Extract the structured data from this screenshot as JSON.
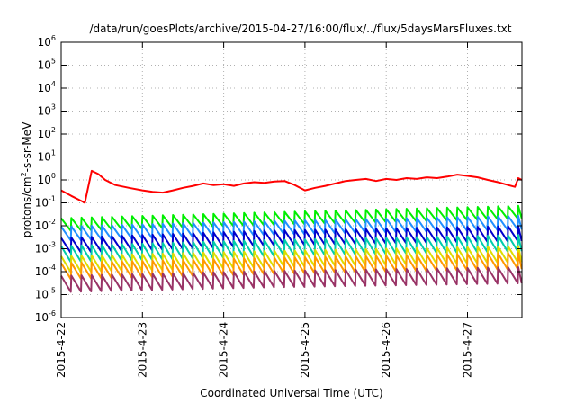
{
  "chart_data": {
    "type": "line",
    "title": "/data/run/goesPlots/archive/2015-04-27/16:00/flux/../flux/5daysMarsFluxes.txt",
    "xlabel": "Coordinated Universal Time (UTC)",
    "ylabel_main": "protons/cm",
    "ylabel_sup": "2",
    "ylabel_rest": "-s-sr-MeV",
    "yscale": "log",
    "ylim": [
      1e-06,
      1000000.0
    ],
    "y_ticks": [
      {
        "base": "10",
        "exp": "-6",
        "value": -6
      },
      {
        "base": "10",
        "exp": "-5",
        "value": -5
      },
      {
        "base": "10",
        "exp": "-4",
        "value": -4
      },
      {
        "base": "10",
        "exp": "-3",
        "value": -3
      },
      {
        "base": "10",
        "exp": "-2",
        "value": -2
      },
      {
        "base": "10",
        "exp": "-1",
        "value": -1
      },
      {
        "base": "10",
        "exp": "0",
        "value": 0
      },
      {
        "base": "10",
        "exp": "1",
        "value": 1
      },
      {
        "base": "10",
        "exp": "2",
        "value": 2
      },
      {
        "base": "10",
        "exp": "3",
        "value": 3
      },
      {
        "base": "10",
        "exp": "4",
        "value": 4
      },
      {
        "base": "10",
        "exp": "5",
        "value": 5
      },
      {
        "base": "10",
        "exp": "6",
        "value": 6
      }
    ],
    "xlim_days": [
      "2015-04-22 00:00",
      "2015-04-27 16:00"
    ],
    "x_ticks": [
      {
        "label": "2015-4-22",
        "date": "2015-04-22"
      },
      {
        "label": "2015-4-23",
        "date": "2015-04-23"
      },
      {
        "label": "2015-4-24",
        "date": "2015-04-24"
      },
      {
        "label": "2015-4-25",
        "date": "2015-04-25"
      },
      {
        "label": "2015-4-26",
        "date": "2015-04-26"
      },
      {
        "label": "2015-4-27",
        "date": "2015-04-27"
      }
    ],
    "grid": true,
    "series": [
      {
        "color": "#ff0000",
        "description": "highest channel, smooth with spike on 2015-04-22",
        "points": [
          [
            "2015-04-22 00:00",
            0.35
          ],
          [
            "2015-04-22 03:00",
            0.2
          ],
          [
            "2015-04-22 06:00",
            0.12
          ],
          [
            "2015-04-22 07:00",
            0.1
          ],
          [
            "2015-04-22 08:00",
            0.5
          ],
          [
            "2015-04-22 09:00",
            2.5
          ],
          [
            "2015-04-22 11:00",
            1.8
          ],
          [
            "2015-04-22 13:00",
            1.0
          ],
          [
            "2015-04-22 16:00",
            0.6
          ],
          [
            "2015-04-22 20:00",
            0.45
          ],
          [
            "2015-04-23 00:00",
            0.35
          ],
          [
            "2015-04-23 03:00",
            0.3
          ],
          [
            "2015-04-23 06:00",
            0.28
          ],
          [
            "2015-04-23 09:00",
            0.35
          ],
          [
            "2015-04-23 12:00",
            0.45
          ],
          [
            "2015-04-23 15:00",
            0.55
          ],
          [
            "2015-04-23 18:00",
            0.7
          ],
          [
            "2015-04-23 21:00",
            0.6
          ],
          [
            "2015-04-24 00:00",
            0.65
          ],
          [
            "2015-04-24 03:00",
            0.55
          ],
          [
            "2015-04-24 06:00",
            0.7
          ],
          [
            "2015-04-24 09:00",
            0.8
          ],
          [
            "2015-04-24 12:00",
            0.75
          ],
          [
            "2015-04-24 15:00",
            0.85
          ],
          [
            "2015-04-24 18:00",
            0.9
          ],
          [
            "2015-04-24 21:00",
            0.6
          ],
          [
            "2015-04-25 00:00",
            0.35
          ],
          [
            "2015-04-25 03:00",
            0.45
          ],
          [
            "2015-04-25 06:00",
            0.55
          ],
          [
            "2015-04-25 09:00",
            0.7
          ],
          [
            "2015-04-25 12:00",
            0.9
          ],
          [
            "2015-04-25 15:00",
            1.0
          ],
          [
            "2015-04-25 18:00",
            1.1
          ],
          [
            "2015-04-25 21:00",
            0.9
          ],
          [
            "2015-04-26 00:00",
            1.1
          ],
          [
            "2015-04-26 03:00",
            1.0
          ],
          [
            "2015-04-26 06:00",
            1.2
          ],
          [
            "2015-04-26 09:00",
            1.1
          ],
          [
            "2015-04-26 12:00",
            1.3
          ],
          [
            "2015-04-26 15:00",
            1.2
          ],
          [
            "2015-04-26 18:00",
            1.4
          ],
          [
            "2015-04-26 21:00",
            1.7
          ],
          [
            "2015-04-27 00:00",
            1.5
          ],
          [
            "2015-04-27 03:00",
            1.3
          ],
          [
            "2015-04-27 06:00",
            1.0
          ],
          [
            "2015-04-27 09:00",
            0.8
          ],
          [
            "2015-04-27 12:00",
            0.6
          ],
          [
            "2015-04-27 14:00",
            0.5
          ],
          [
            "2015-04-27 15:00",
            1.2
          ],
          [
            "2015-04-27 16:00",
            1.0
          ]
        ]
      },
      {
        "color": "#00ee00",
        "base": 0.012,
        "amplitude_decades": 0.55,
        "trend": [
          [
            0,
            0.01
          ],
          [
            2.5,
            0.018
          ],
          [
            5.67,
            0.035
          ]
        ]
      },
      {
        "color": "#1f8fff",
        "base": 0.005,
        "amplitude_decades": 0.6,
        "trend": [
          [
            0,
            0.004
          ],
          [
            2.5,
            0.007
          ],
          [
            5.67,
            0.012
          ]
        ]
      },
      {
        "color": "#0000cc",
        "base": 0.0015,
        "amplitude_decades": 0.65,
        "trend": [
          [
            0,
            0.0012
          ],
          [
            2.5,
            0.0025
          ],
          [
            5.67,
            0.004
          ]
        ]
      },
      {
        "color": "#00ccaa",
        "base": 0.0007,
        "amplitude_decades": 0.7,
        "trend": [
          [
            0,
            0.0005
          ],
          [
            2.5,
            0.0009
          ],
          [
            5.67,
            0.0015
          ]
        ]
      },
      {
        "color": "#dddd00",
        "base": 0.00025,
        "amplitude_decades": 0.7,
        "trend": [
          [
            0,
            0.00018
          ],
          [
            2.5,
            0.0003
          ],
          [
            5.67,
            0.0005
          ]
        ]
      },
      {
        "color": "#ff9900",
        "base": 0.00012,
        "amplitude_decades": 0.7,
        "trend": [
          [
            0,
            9e-05
          ],
          [
            2.5,
            0.00015
          ],
          [
            5.67,
            0.00025
          ]
        ]
      },
      {
        "color": "#993366",
        "base": 3e-05,
        "amplitude_decades": 0.7,
        "trend": [
          [
            0,
            2.5e-05
          ],
          [
            2.5,
            4e-05
          ],
          [
            5.67,
            6e-05
          ]
        ]
      }
    ],
    "oscillation_period_hours": 3
  }
}
